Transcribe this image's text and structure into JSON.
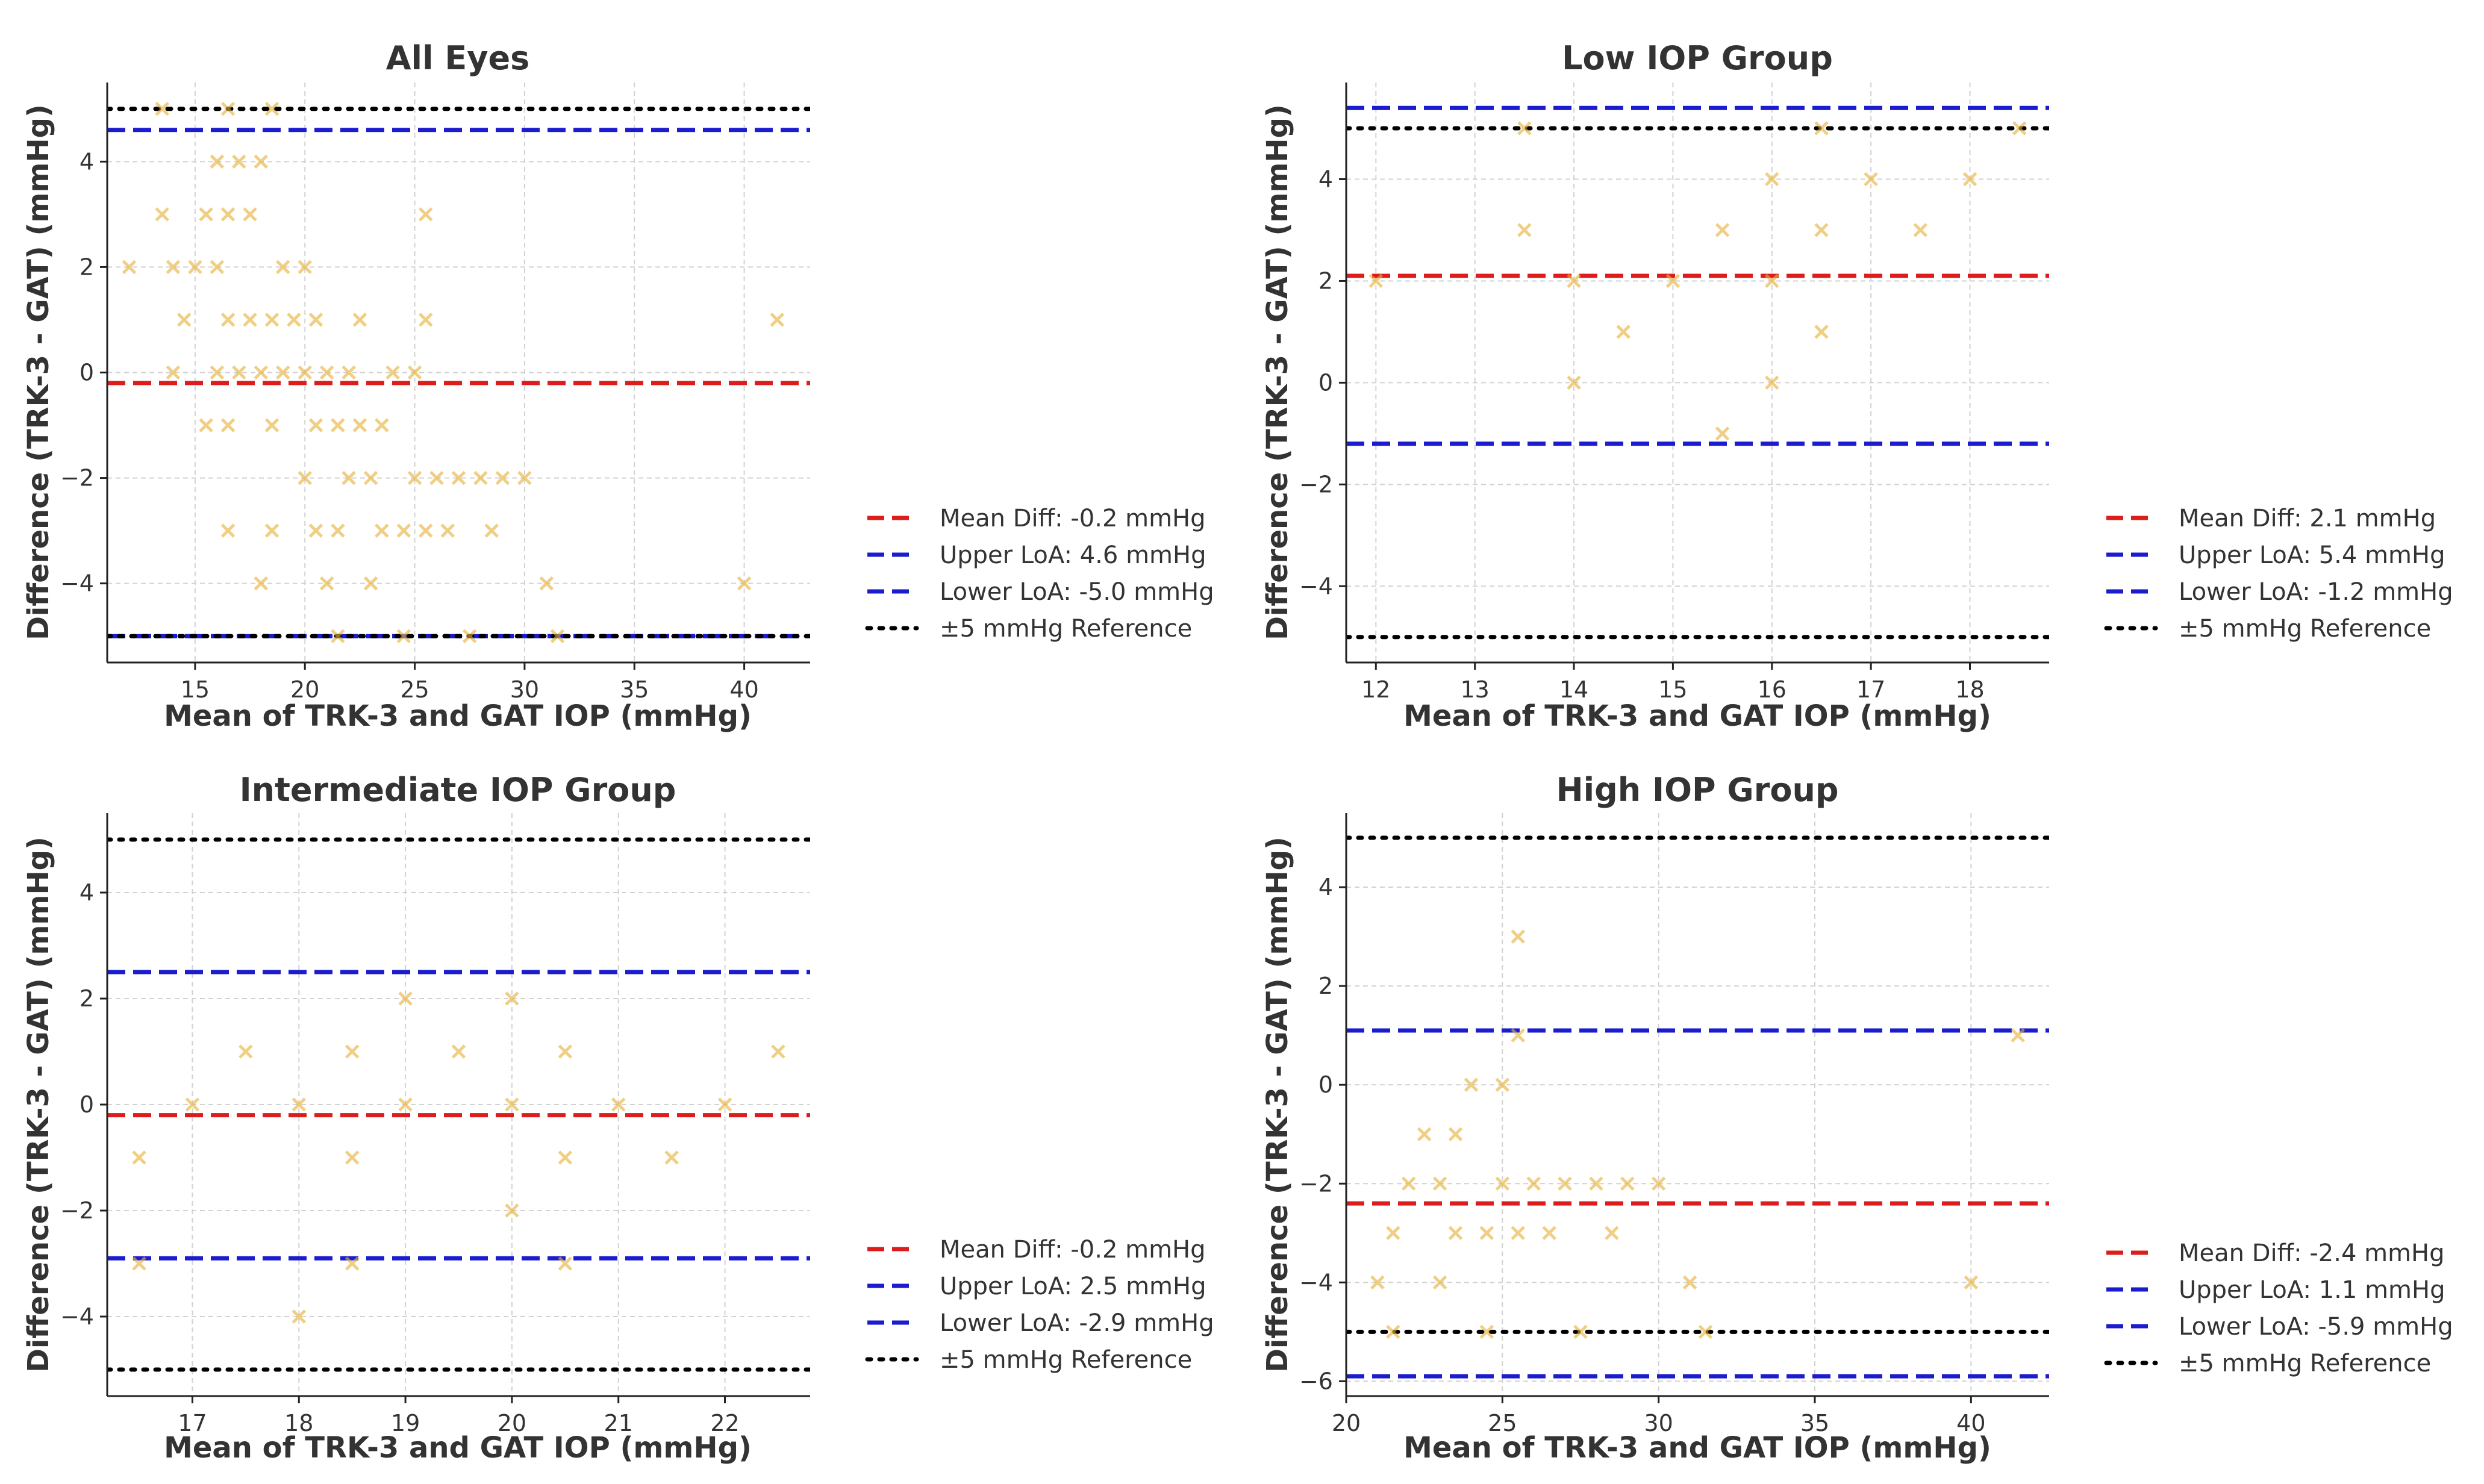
{
  "chart_data": [
    {
      "type": "scatter",
      "title": "All Eyes",
      "xlabel": "Mean of TRK-3 and GAT IOP (mmHg)",
      "ylabel": "Difference (TRK-3 - GAT) (mmHg)",
      "xlim": [
        11,
        43
      ],
      "ylim": [
        -5.5,
        5.5
      ],
      "xticks": [
        15,
        20,
        25,
        30,
        35,
        40
      ],
      "yticks": [
        -4,
        -2,
        0,
        2,
        4
      ],
      "grid": true,
      "legend": "right",
      "points": {
        "x": [
          13.5,
          16.5,
          18.5,
          16,
          17,
          18,
          13.5,
          15.5,
          16.5,
          17.5,
          12,
          14,
          15,
          16,
          19,
          20,
          25.5,
          14.5,
          16.5,
          17.5,
          18.5,
          19.5,
          20.5,
          22.5,
          25.5,
          41.5,
          14,
          16,
          17,
          18,
          19,
          20,
          21,
          22,
          24,
          25,
          15.5,
          16.5,
          18.5,
          20.5,
          21.5,
          22.5,
          23.5,
          20,
          22,
          23,
          25,
          26,
          27,
          28,
          29,
          30,
          16.5,
          18.5,
          20.5,
          21.5,
          23.5,
          24.5,
          25.5,
          26.5,
          28.5,
          18,
          21,
          23,
          31,
          40,
          21.5,
          24.5,
          27.5,
          31.5
        ],
        "y": [
          5,
          5,
          5,
          4,
          4,
          4,
          3,
          3,
          3,
          3,
          2,
          2,
          2,
          2,
          2,
          2,
          3,
          1,
          1,
          1,
          1,
          1,
          1,
          1,
          1,
          1,
          0,
          0,
          0,
          0,
          0,
          0,
          0,
          0,
          0,
          0,
          -1,
          -1,
          -1,
          -1,
          -1,
          -1,
          -1,
          -2,
          -2,
          -2,
          -2,
          -2,
          -2,
          -2,
          -2,
          -2,
          -3,
          -3,
          -3,
          -3,
          -3,
          -3,
          -3,
          -3,
          -3,
          -4,
          -4,
          -4,
          -4,
          -4,
          -5,
          -5,
          -5,
          -5
        ]
      },
      "lines": [
        {
          "label": "Mean Diff: -0.2 mmHg",
          "y": -0.2,
          "color": "#dd1c1c",
          "style": "dashed"
        },
        {
          "label": "Upper LoA: 4.6 mmHg",
          "y": 4.6,
          "color": "#1c1ccf",
          "style": "dashed"
        },
        {
          "label": "Lower LoA: -5.0 mmHg",
          "y": -5.0,
          "color": "#1c1ccf",
          "style": "dashed"
        },
        {
          "label": "±5 mmHg Reference",
          "y": [
            5,
            -5
          ],
          "color": "#000000",
          "style": "dotted"
        }
      ]
    },
    {
      "type": "scatter",
      "title": "Low IOP Group",
      "xlabel": "Mean of TRK-3 and GAT IOP (mmHg)",
      "ylabel": "Difference (TRK-3 - GAT) (mmHg)",
      "xlim": [
        11.7,
        18.8
      ],
      "ylim": [
        -5.5,
        5.9
      ],
      "xticks": [
        12,
        13,
        14,
        15,
        16,
        17,
        18
      ],
      "yticks": [
        -4,
        -2,
        0,
        2,
        4
      ],
      "grid": true,
      "legend": "right",
      "points": {
        "x": [
          13.5,
          16.5,
          18.5,
          16,
          17,
          18,
          13.5,
          15.5,
          16.5,
          17.5,
          12,
          14,
          15,
          16,
          14.5,
          16.5,
          14,
          16,
          15.5
        ],
        "y": [
          5,
          5,
          5,
          4,
          4,
          4,
          3,
          3,
          3,
          3,
          2,
          2,
          2,
          2,
          1,
          1,
          0,
          0,
          -1
        ]
      },
      "lines": [
        {
          "label": "Mean Diff: 2.1 mmHg",
          "y": 2.1,
          "color": "#dd1c1c",
          "style": "dashed"
        },
        {
          "label": "Upper LoA: 5.4 mmHg",
          "y": 5.4,
          "color": "#1c1ccf",
          "style": "dashed"
        },
        {
          "label": "Lower LoA: -1.2 mmHg",
          "y": -1.2,
          "color": "#1c1ccf",
          "style": "dashed"
        },
        {
          "label": "±5 mmHg Reference",
          "y": [
            5,
            -5
          ],
          "color": "#000000",
          "style": "dotted"
        }
      ]
    },
    {
      "type": "scatter",
      "title": "Intermediate IOP Group",
      "xlabel": "Mean of TRK-3 and GAT IOP (mmHg)",
      "ylabel": "Difference (TRK-3 - GAT) (mmHg)",
      "xlim": [
        16.2,
        22.8
      ],
      "ylim": [
        -5.5,
        5.5
      ],
      "xticks": [
        17,
        18,
        19,
        20,
        21,
        22
      ],
      "yticks": [
        -4,
        -2,
        0,
        2,
        4
      ],
      "grid": true,
      "legend": "right",
      "points": {
        "x": [
          19,
          20,
          17.5,
          18.5,
          19.5,
          20.5,
          22.5,
          17,
          18,
          19,
          20,
          21,
          22,
          16.5,
          18.5,
          20.5,
          21.5,
          20,
          16.5,
          18.5,
          20.5,
          18
        ],
        "y": [
          2,
          2,
          1,
          1,
          1,
          1,
          1,
          0,
          0,
          0,
          0,
          0,
          0,
          -1,
          -1,
          -1,
          -1,
          -2,
          -3,
          -3,
          -3,
          -4
        ]
      },
      "lines": [
        {
          "label": "Mean Diff: -0.2 mmHg",
          "y": -0.2,
          "color": "#dd1c1c",
          "style": "dashed"
        },
        {
          "label": "Upper LoA: 2.5 mmHg",
          "y": 2.5,
          "color": "#1c1ccf",
          "style": "dashed"
        },
        {
          "label": "Lower LoA: -2.9 mmHg",
          "y": -2.9,
          "color": "#1c1ccf",
          "style": "dashed"
        },
        {
          "label": "±5 mmHg Reference",
          "y": [
            5,
            -5
          ],
          "color": "#000000",
          "style": "dotted"
        }
      ]
    },
    {
      "type": "scatter",
      "title": "High IOP Group",
      "xlabel": "Mean of TRK-3 and GAT IOP (mmHg)",
      "ylabel": "Difference (TRK-3 - GAT) (mmHg)",
      "xlim": [
        20,
        42.5
      ],
      "ylim": [
        -6.3,
        5.5
      ],
      "xticks": [
        20,
        25,
        30,
        35,
        40
      ],
      "yticks": [
        -6,
        -4,
        -2,
        0,
        2,
        4
      ],
      "grid": true,
      "legend": "right",
      "points": {
        "x": [
          25.5,
          25.5,
          41.5,
          22.5,
          23.5,
          24,
          25,
          22,
          23,
          25,
          26,
          27,
          28,
          29,
          30,
          21.5,
          23.5,
          24.5,
          25.5,
          26.5,
          28.5,
          21,
          23,
          31,
          40,
          21.5,
          24.5,
          27.5,
          31.5
        ],
        "y": [
          3,
          1,
          1,
          -1,
          -1,
          0,
          0,
          -2,
          -2,
          -2,
          -2,
          -2,
          -2,
          -2,
          -2,
          -3,
          -3,
          -3,
          -3,
          -3,
          -3,
          -4,
          -4,
          -4,
          -4,
          -5,
          -5,
          -5,
          -5
        ]
      },
      "lines": [
        {
          "label": "Mean Diff: -2.4 mmHg",
          "y": -2.4,
          "color": "#dd1c1c",
          "style": "dashed"
        },
        {
          "label": "Upper LoA: 1.1 mmHg",
          "y": 1.1,
          "color": "#1c1ccf",
          "style": "dashed"
        },
        {
          "label": "Lower LoA: -5.9 mmHg",
          "y": -5.9,
          "color": "#1c1ccf",
          "style": "dashed"
        },
        {
          "label": "±5 mmHg Reference",
          "y": [
            5,
            -5
          ],
          "color": "#000000",
          "style": "dotted"
        }
      ]
    }
  ],
  "colors": {
    "marker": "#e8b23a",
    "grid": "#d2d2d2",
    "axis": "#222222",
    "text": "#333333"
  }
}
